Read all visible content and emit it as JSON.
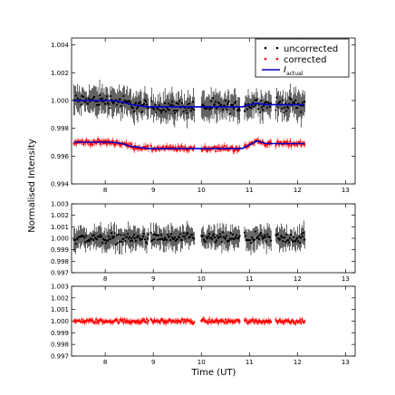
{
  "figure": {
    "ylabel": "Normalised Intensity",
    "xlabel": "Time (UT)"
  },
  "colors": {
    "uncorrected": "#000000",
    "corrected": "#ff0000",
    "model": "#0000cc"
  },
  "legend": {
    "placement": "top-right",
    "entries": [
      {
        "label": "uncorrected",
        "marker": "dots",
        "color": "#000000"
      },
      {
        "label": "corrected",
        "marker": "dots",
        "color": "#ff0000"
      },
      {
        "label_main": "I",
        "label_sub": "actual",
        "marker": "line",
        "color": "#0000cc"
      }
    ]
  },
  "chart_data": [
    {
      "type": "scatter",
      "panel": "top",
      "xlim": [
        7.3,
        13.2
      ],
      "ylim": [
        0.994,
        1.0045
      ],
      "x_ticks": [
        "8",
        "9",
        "10",
        "11",
        "12",
        "13"
      ],
      "y_ticks": [
        "0.994",
        "0.996",
        "0.998",
        "1.000",
        "1.002",
        "1.004"
      ],
      "series": [
        {
          "name": "uncorrected",
          "color": "#000000",
          "level": 1.0,
          "err": 0.0008,
          "scatter": 0.0004,
          "segments": [
            [
              7.35,
              8.9
            ],
            [
              8.95,
              9.85
            ],
            [
              10.0,
              10.8
            ],
            [
              10.9,
              11.45
            ],
            [
              11.55,
              12.15
            ]
          ]
        },
        {
          "name": "corrected",
          "color": "#ff0000",
          "level": 0.997,
          "err": 0.0002,
          "scatter": 0.00015,
          "segments": [
            [
              7.35,
              8.9
            ],
            [
              8.95,
              9.85
            ],
            [
              10.0,
              10.8
            ],
            [
              10.9,
              11.45
            ],
            [
              11.55,
              12.15
            ]
          ]
        }
      ],
      "model_lines": [
        {
          "name": "I_actual",
          "color": "#0000cc",
          "x": [
            7.35,
            8.15,
            8.35,
            8.55,
            8.75,
            8.9,
            10.2,
            10.5,
            10.85,
            11.0,
            11.15,
            11.35,
            11.5,
            12.15
          ],
          "y": [
            1.0,
            1.0,
            0.9999,
            0.9997,
            0.9996,
            0.99955,
            0.99955,
            0.99955,
            0.99955,
            0.9997,
            0.9998,
            0.9997,
            0.9997,
            0.9997
          ]
        },
        {
          "name": "I_actual_corrected",
          "color": "#0000cc",
          "x": [
            7.35,
            8.15,
            8.35,
            8.55,
            8.75,
            8.9,
            10.2,
            10.5,
            10.85,
            11.0,
            11.15,
            11.35,
            11.5,
            12.15
          ],
          "y": [
            0.997,
            0.997,
            0.9969,
            0.9967,
            0.9966,
            0.99655,
            0.99655,
            0.99655,
            0.99655,
            0.9968,
            0.9971,
            0.9969,
            0.9969,
            0.9969
          ]
        }
      ]
    },
    {
      "type": "scatter",
      "panel": "middle",
      "xlim": [
        7.3,
        13.2
      ],
      "ylim": [
        0.997,
        1.003
      ],
      "x_ticks": [
        "8",
        "9",
        "10",
        "11",
        "12",
        "13"
      ],
      "y_ticks": [
        "0.997",
        "0.998",
        "0.999",
        "1.000",
        "1.001",
        "1.002",
        "1.003"
      ],
      "series": [
        {
          "name": "uncorrected",
          "color": "#000000",
          "level": 1.0,
          "err": 0.0008,
          "scatter": 0.0004,
          "segments": [
            [
              7.35,
              8.9
            ],
            [
              8.95,
              9.85
            ],
            [
              10.0,
              10.8
            ],
            [
              10.9,
              11.45
            ],
            [
              11.55,
              12.15
            ]
          ]
        }
      ]
    },
    {
      "type": "scatter",
      "panel": "bottom",
      "xlim": [
        7.3,
        13.2
      ],
      "ylim": [
        0.997,
        1.003
      ],
      "x_ticks": [
        "8",
        "9",
        "10",
        "11",
        "12",
        "13"
      ],
      "y_ticks": [
        "0.997",
        "0.998",
        "0.999",
        "1.000",
        "1.001",
        "1.002",
        "1.003"
      ],
      "series": [
        {
          "name": "corrected",
          "color": "#ff0000",
          "level": 1.0,
          "err": 0.0002,
          "scatter": 0.00015,
          "segments": [
            [
              7.35,
              8.9
            ],
            [
              8.95,
              9.85
            ],
            [
              10.0,
              10.8
            ],
            [
              10.9,
              11.45
            ],
            [
              11.55,
              12.15
            ]
          ]
        }
      ]
    }
  ]
}
